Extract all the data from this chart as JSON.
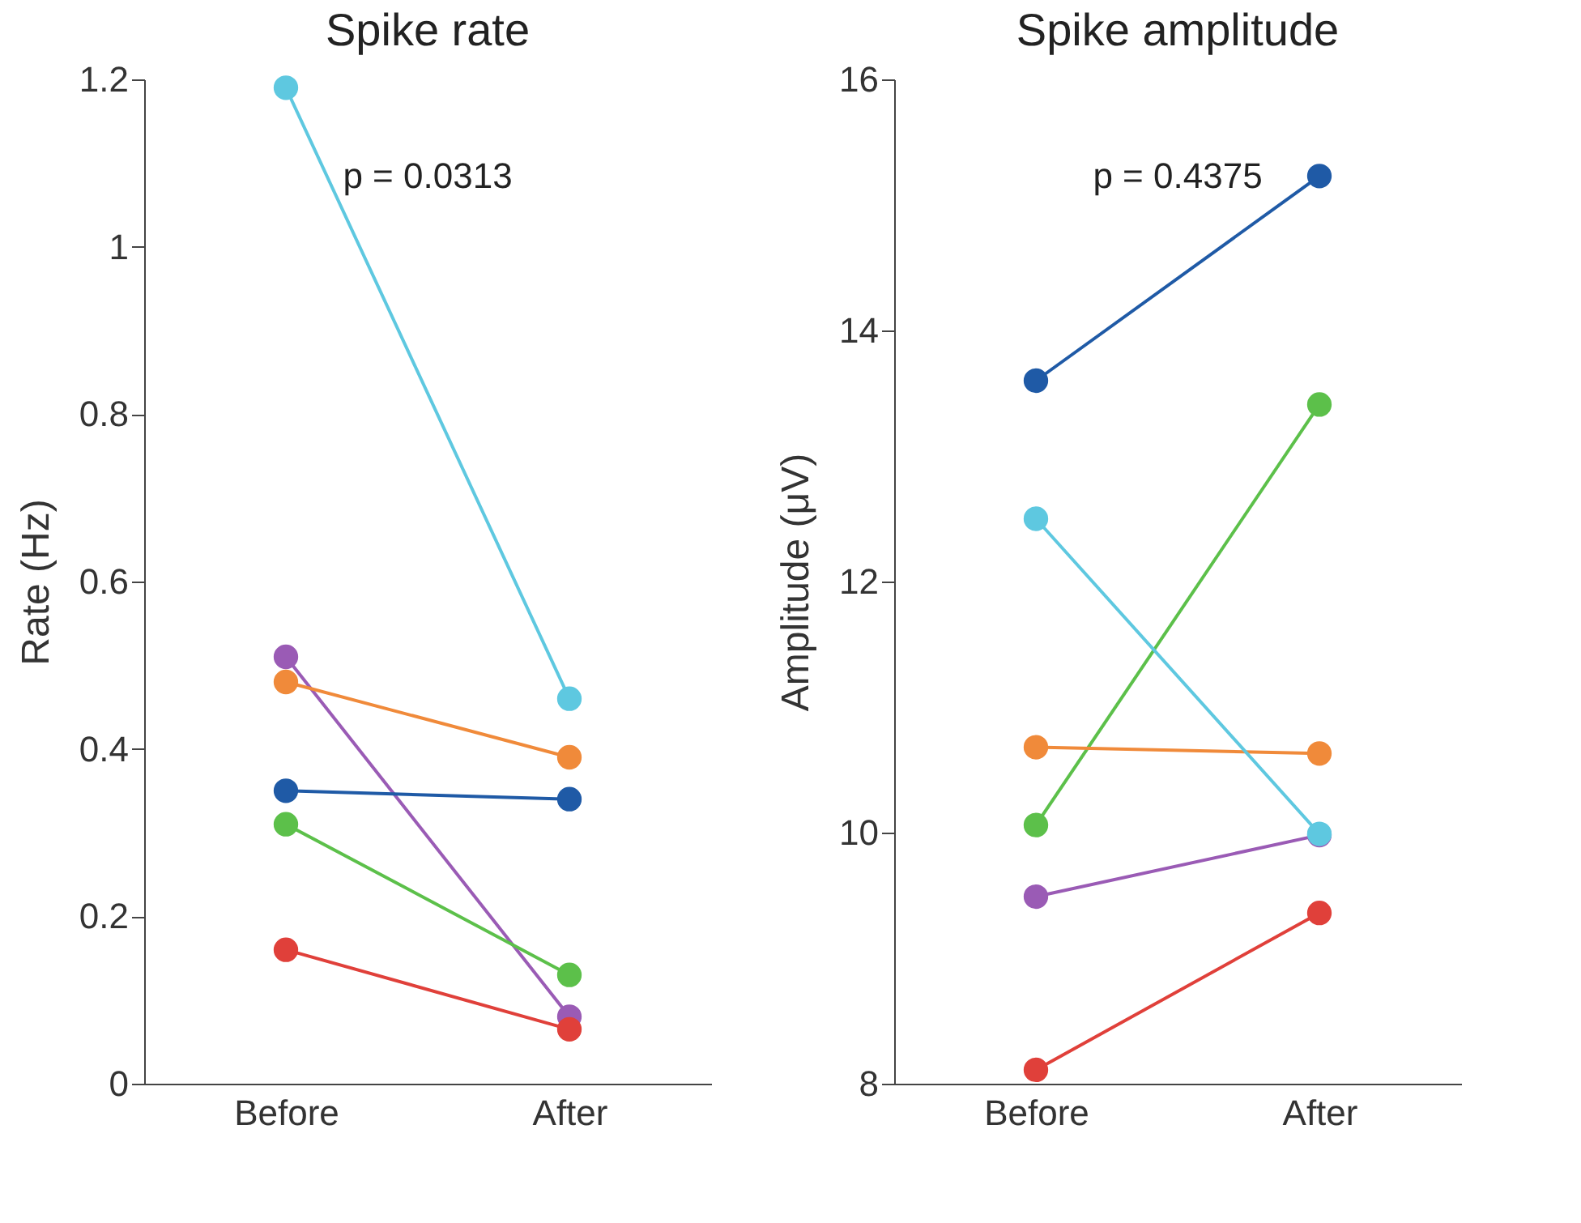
{
  "chart_data": [
    {
      "type": "line",
      "title": "Spike rate",
      "ylabel": "Rate (Hz)",
      "categories": [
        "Before",
        "After"
      ],
      "ylim": [
        0,
        1.2
      ],
      "yticks": [
        0,
        0.2,
        0.4,
        0.6,
        0.8,
        1,
        1.2
      ],
      "marker": "circle",
      "line_style": "solid",
      "grid": false,
      "legend": false,
      "annotations": [
        "p = 0.0313"
      ],
      "series": [
        {
          "color": "#5ec8e0",
          "values": [
            1.19,
            0.46
          ]
        },
        {
          "color": "#9a5bb5",
          "values": [
            0.51,
            0.08
          ]
        },
        {
          "color": "#f08a3a",
          "values": [
            0.48,
            0.39
          ]
        },
        {
          "color": "#1f5aa6",
          "values": [
            0.35,
            0.34
          ]
        },
        {
          "color": "#5cc04a",
          "values": [
            0.31,
            0.13
          ]
        },
        {
          "color": "#e0403a",
          "values": [
            0.16,
            0.065
          ]
        }
      ]
    },
    {
      "type": "line",
      "title": "Spike amplitude",
      "ylabel": "Amplitude (μV)",
      "categories": [
        "Before",
        "After"
      ],
      "ylim": [
        8,
        16
      ],
      "yticks": [
        8,
        10,
        12,
        14,
        16
      ],
      "marker": "circle",
      "line_style": "solid",
      "grid": false,
      "legend": false,
      "annotations": [
        "p = 0.4375"
      ],
      "series": [
        {
          "color": "#1f5aa6",
          "values": [
            13.6,
            15.23
          ]
        },
        {
          "color": "#5cc04a",
          "values": [
            10.06,
            13.41
          ]
        },
        {
          "color": "#f08a3a",
          "values": [
            10.68,
            10.63
          ]
        },
        {
          "color": "#9a5bb5",
          "values": [
            9.49,
            9.98
          ]
        },
        {
          "color": "#5ec8e0",
          "values": [
            12.5,
            9.99
          ]
        },
        {
          "color": "#e0403a",
          "values": [
            8.11,
            9.36
          ]
        }
      ]
    }
  ]
}
